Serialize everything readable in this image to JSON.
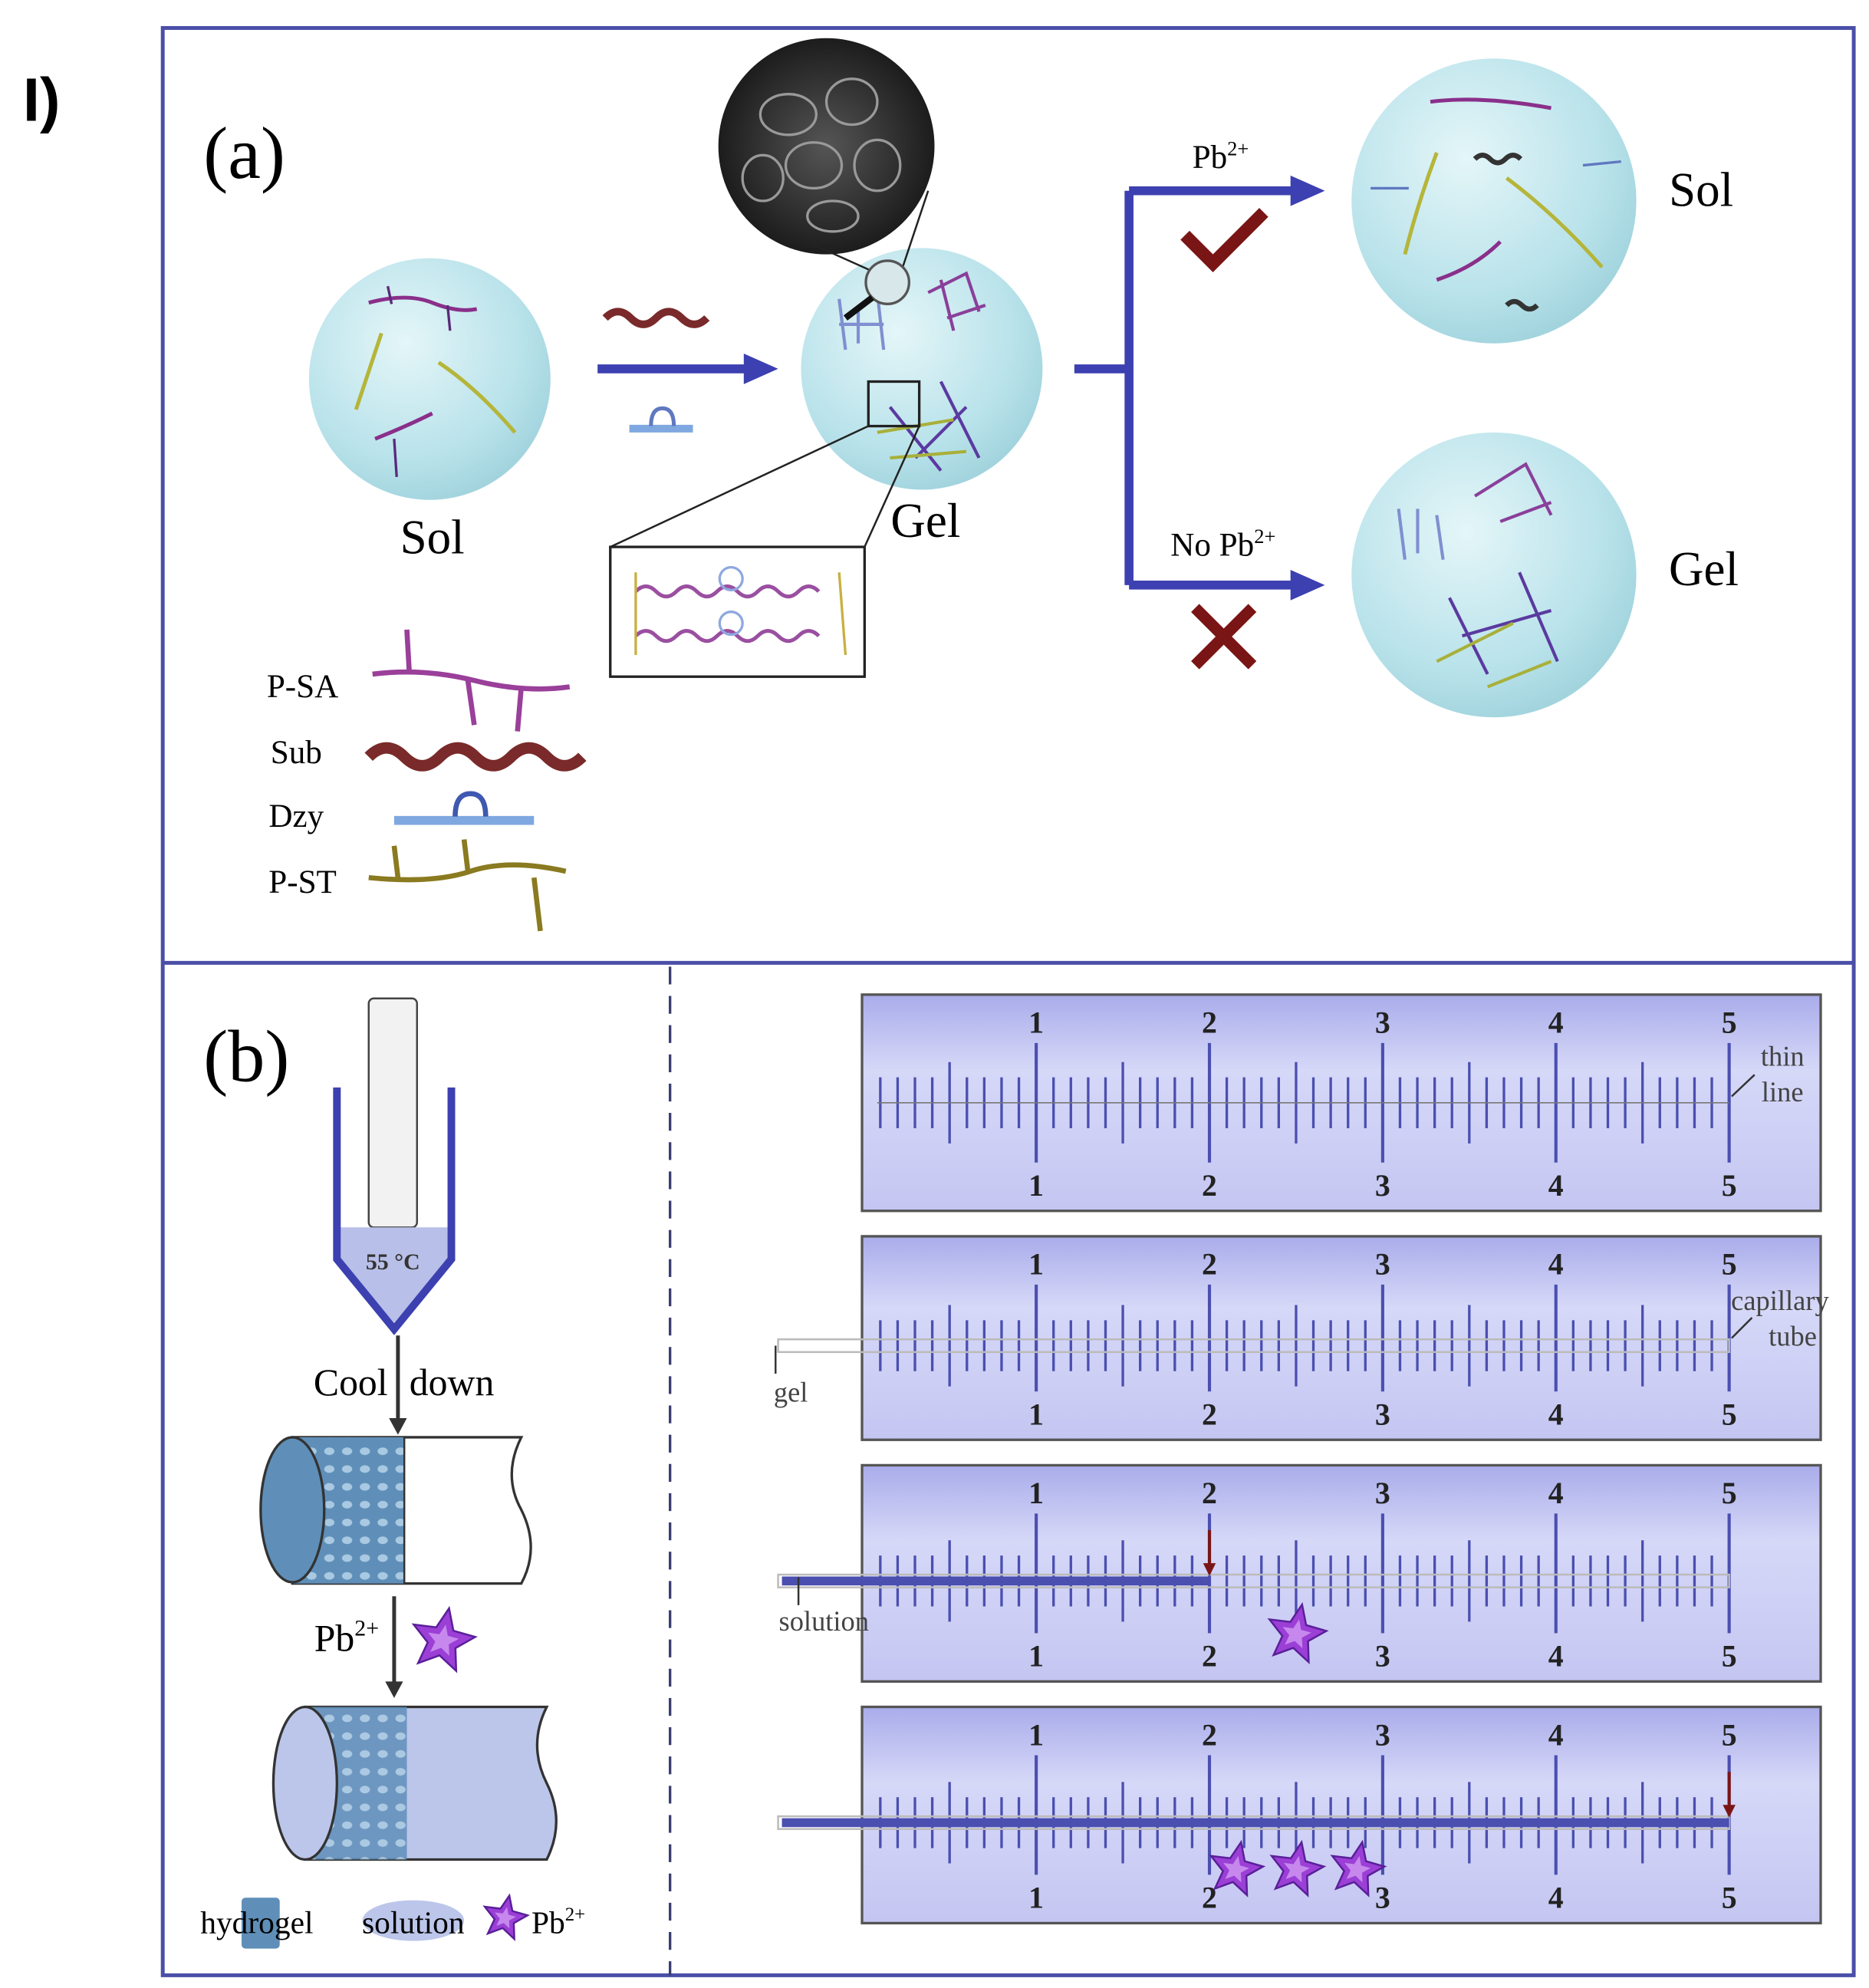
{
  "figure_label": "I)",
  "panel_a": {
    "label": "(a)",
    "sol_left": "Sol",
    "gel_center": "Gel",
    "branch_top": {
      "label_base": "Pb",
      "label_sup": "2+",
      "mark": "check-icon",
      "result": "Sol"
    },
    "branch_bottom": {
      "label_base": "No Pb",
      "label_sup": "2+",
      "mark": "cross-icon",
      "result": "Gel"
    },
    "legend": [
      "P-SA",
      "Sub",
      "Dzy",
      "P-ST"
    ]
  },
  "panel_b": {
    "label": "(b)",
    "temperature": "55 °C",
    "step1_left": "Cool",
    "step1_right": "down",
    "step2_base": "Pb",
    "step2_sup": "2+",
    "legend": {
      "hydrogel": "hydrogel",
      "solution": "solution",
      "pb_base": "Pb",
      "pb_sup": "2+"
    },
    "ruler_numbers": [
      "1",
      "2",
      "3",
      "4",
      "5"
    ],
    "ruler1_note": [
      "thin",
      "line"
    ],
    "ruler2_note": [
      "capillary",
      "tube"
    ],
    "ruler2_pointer": "gel",
    "ruler3_pointer": "solution",
    "ruler3_solution_reaches": 2,
    "ruler4_solution_reaches": 5
  },
  "colors": {
    "frame": "#4b4fa8",
    "arrow": "#3c40b0",
    "sphere": "#bfe6ec",
    "ruler_bg": "#c9cbf2",
    "mark_red": "#7a1515",
    "star": "#9b3fd6"
  }
}
